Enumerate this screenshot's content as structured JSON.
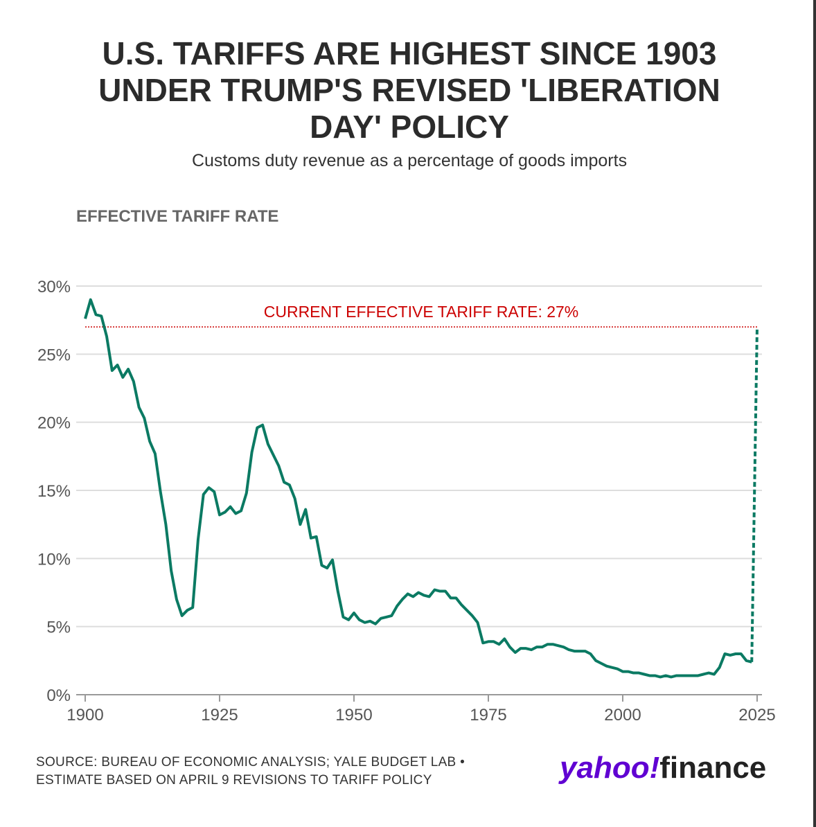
{
  "chart_data": {
    "type": "line",
    "title_lines": [
      "U.S. TARIFFS ARE HIGHEST SINCE 1903",
      "UNDER TRUMP'S REVISED 'LIBERATION",
      "DAY' POLICY"
    ],
    "subtitle": "Customs duty revenue as a percentage of goods imports",
    "y_axis_label": "EFFECTIVE TARIFF RATE",
    "xlim": [
      1900,
      2025
    ],
    "ylim": [
      0,
      30
    ],
    "xticks": [
      1900,
      1925,
      1950,
      1975,
      2000,
      2025
    ],
    "yticks": [
      {
        "value": 0,
        "label": "0%"
      },
      {
        "value": 5,
        "label": "5%"
      },
      {
        "value": 10,
        "label": "10%"
      },
      {
        "value": 15,
        "label": "15%"
      },
      {
        "value": 20,
        "label": "20%"
      },
      {
        "value": 25,
        "label": "25%"
      },
      {
        "value": 30,
        "label": "30%"
      }
    ],
    "grid": true,
    "reference_line": {
      "value": 27,
      "label": "CURRENT EFFECTIVE TARIFF RATE: 27%",
      "color": "#cc0000"
    },
    "series": [
      {
        "color": "#0b7a63",
        "style": "solid",
        "x": [
          1900,
          1901,
          1902,
          1903,
          1904,
          1905,
          1906,
          1907,
          1908,
          1909,
          1910,
          1911,
          1912,
          1913,
          1914,
          1915,
          1916,
          1917,
          1918,
          1919,
          1920,
          1921,
          1922,
          1923,
          1924,
          1925,
          1926,
          1927,
          1928,
          1929,
          1930,
          1931,
          1932,
          1933,
          1934,
          1935,
          1936,
          1937,
          1938,
          1939,
          1940,
          1941,
          1942,
          1943,
          1944,
          1945,
          1946,
          1947,
          1948,
          1949,
          1950,
          1951,
          1952,
          1953,
          1954,
          1955,
          1956,
          1957,
          1958,
          1959,
          1960,
          1961,
          1962,
          1963,
          1964,
          1965,
          1966,
          1967,
          1968,
          1969,
          1970,
          1971,
          1972,
          1973,
          1974,
          1975,
          1976,
          1977,
          1978,
          1979,
          1980,
          1981,
          1982,
          1983,
          1984,
          1985,
          1986,
          1987,
          1988,
          1989,
          1990,
          1991,
          1992,
          1993,
          1994,
          1995,
          1996,
          1997,
          1998,
          1999,
          2000,
          2001,
          2002,
          2003,
          2004,
          2005,
          2006,
          2007,
          2008,
          2009,
          2010,
          2011,
          2012,
          2013,
          2014,
          2015,
          2016,
          2017,
          2018,
          2019,
          2020,
          2021,
          2022,
          2023,
          2024
        ],
        "values": [
          27.6,
          29.0,
          27.9,
          27.8,
          26.3,
          23.8,
          24.2,
          23.3,
          23.9,
          23.0,
          21.1,
          20.3,
          18.6,
          17.7,
          14.9,
          12.5,
          9.1,
          7.0,
          5.8,
          6.2,
          6.4,
          11.4,
          14.7,
          15.2,
          14.9,
          13.2,
          13.4,
          13.8,
          13.3,
          13.5,
          14.8,
          17.8,
          19.6,
          19.8,
          18.4,
          17.6,
          16.8,
          15.6,
          15.4,
          14.4,
          12.5,
          13.6,
          11.5,
          11.6,
          9.5,
          9.3,
          9.9,
          7.6,
          5.7,
          5.5,
          6.0,
          5.5,
          5.3,
          5.4,
          5.2,
          5.6,
          5.7,
          5.8,
          6.5,
          7.0,
          7.4,
          7.2,
          7.5,
          7.3,
          7.2,
          7.7,
          7.6,
          7.6,
          7.1,
          7.1,
          6.6,
          6.2,
          5.8,
          5.3,
          3.8,
          3.9,
          3.9,
          3.7,
          4.1,
          3.5,
          3.1,
          3.4,
          3.4,
          3.3,
          3.5,
          3.5,
          3.7,
          3.7,
          3.6,
          3.5,
          3.3,
          3.2,
          3.2,
          3.2,
          3.0,
          2.5,
          2.3,
          2.1,
          2.0,
          1.9,
          1.7,
          1.7,
          1.6,
          1.6,
          1.5,
          1.4,
          1.4,
          1.3,
          1.4,
          1.3,
          1.4,
          1.4,
          1.4,
          1.4,
          1.4,
          1.5,
          1.6,
          1.5,
          2.0,
          3.0,
          2.9,
          3.0,
          3.0,
          2.5,
          2.4
        ]
      },
      {
        "color": "#0b7a63",
        "style": "dashed",
        "x": [
          2024,
          2025
        ],
        "values": [
          2.4,
          27
        ]
      }
    ],
    "source_lines": [
      "SOURCE: BUREAU OF ECONOMIC ANALYSIS; YALE BUDGET LAB •",
      "ESTIMATE BASED ON APRIL 9 REVISIONS TO TARIFF POLICY"
    ],
    "logo": {
      "brand": "yahoo!",
      "product": "finance"
    }
  }
}
